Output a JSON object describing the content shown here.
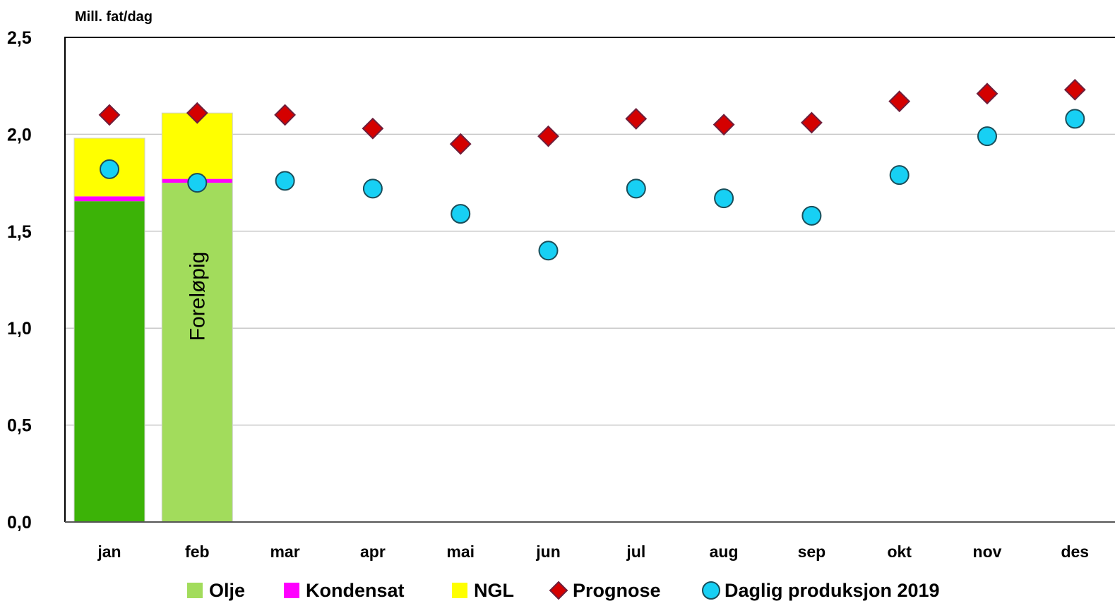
{
  "chart_data": {
    "type": "bar",
    "ylabel": "Mill. fat/dag",
    "ylim": [
      0,
      2.5
    ],
    "yticks": [
      "0,0",
      "0,5",
      "1,0",
      "1,5",
      "2,0",
      "2,5"
    ],
    "ytick_values": [
      0,
      0.5,
      1.0,
      1.5,
      2.0,
      2.5
    ],
    "grid": true,
    "categories": [
      "jan",
      "feb",
      "mar",
      "apr",
      "mai",
      "jun",
      "jul",
      "aug",
      "sep",
      "okt",
      "nov",
      "des"
    ],
    "stacked_series": [
      {
        "name": "Olje",
        "values": [
          1.655,
          1.75,
          null,
          null,
          null,
          null,
          null,
          null,
          null,
          null,
          null,
          null
        ]
      },
      {
        "name": "Kondensat",
        "values": [
          0.025,
          0.02,
          null,
          null,
          null,
          null,
          null,
          null,
          null,
          null,
          null,
          null
        ]
      },
      {
        "name": "NGL",
        "values": [
          0.3,
          0.34,
          null,
          null,
          null,
          null,
          null,
          null,
          null,
          null,
          null,
          null
        ]
      }
    ],
    "bar_annotations": [
      {
        "category": "feb",
        "text": "Foreløpig"
      }
    ],
    "marker_series": [
      {
        "name": "Prognose",
        "marker": "diamond",
        "values": [
          2.1,
          2.11,
          2.1,
          2.03,
          1.95,
          1.99,
          2.08,
          2.05,
          2.06,
          2.17,
          2.21,
          2.23
        ]
      },
      {
        "name": "Daglig produksjon 2019",
        "marker": "circle",
        "values": [
          1.82,
          1.75,
          1.76,
          1.72,
          1.59,
          1.4,
          1.72,
          1.67,
          1.58,
          1.79,
          1.99,
          2.08
        ]
      }
    ],
    "legend": {
      "position": "bottom",
      "entries": [
        "Olje",
        "Kondensat",
        "NGL",
        "Prognose",
        "Daglig produksjon 2019"
      ]
    },
    "colors": {
      "olje_actual": "#3cb307",
      "olje_preliminary": "#a2dc5c",
      "kondensat": "#ff00ff",
      "ngl": "#ffff00",
      "prognose_fill": "#d40000",
      "prognose_edge": "#6e1f3c",
      "daily_fill": "#17d0f4",
      "daily_edge": "#1a4e5a",
      "grid": "#c8c8c8",
      "axis": "#000000"
    }
  }
}
